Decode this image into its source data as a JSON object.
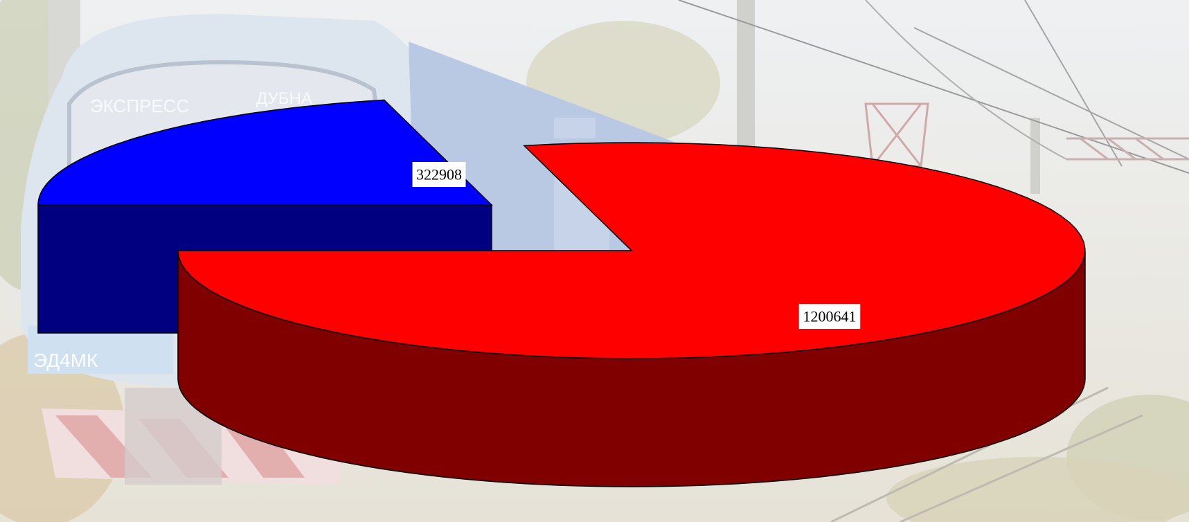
{
  "chart_data": {
    "type": "pie",
    "style": "3d-exploded",
    "title": "",
    "slices": [
      {
        "label": "",
        "value": 322908,
        "top_color": "#0000ff",
        "side_color": "#000080"
      },
      {
        "label": "",
        "value": 1200641,
        "top_color": "#ff0000",
        "side_color": "#800000"
      }
    ],
    "legend": "none",
    "background": "faded photo of a suburban electric train"
  }
}
